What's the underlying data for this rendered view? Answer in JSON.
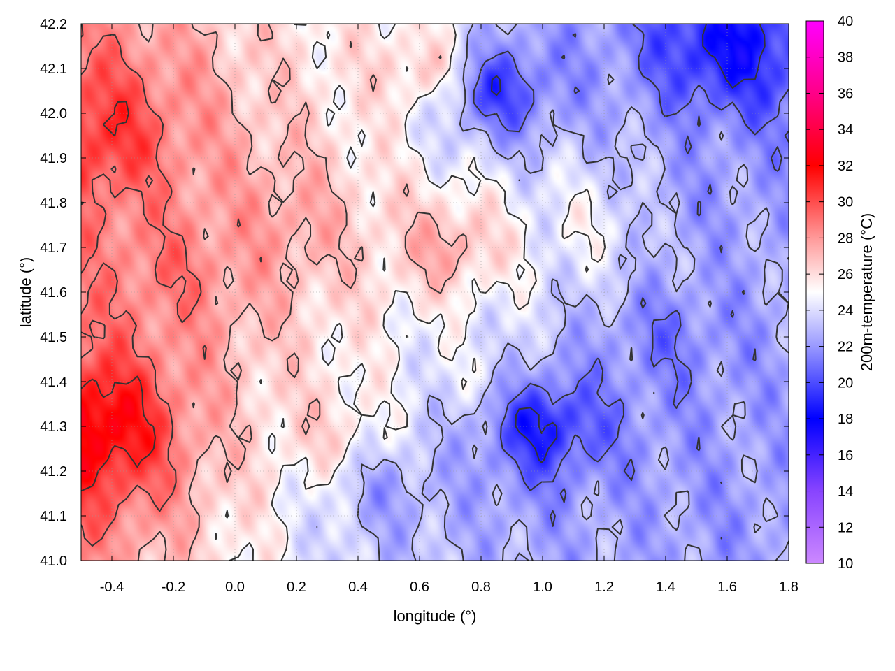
{
  "chart_data": {
    "type": "heatmap",
    "xlabel": "longitude (°)",
    "ylabel": "latitude (°)",
    "colorbar_label": "200m-temperature (°C)",
    "xlim": [
      -0.5,
      1.8
    ],
    "ylim": [
      41.0,
      42.2
    ],
    "x_ticks": [
      -0.4,
      -0.2,
      0.0,
      0.2,
      0.4,
      0.6,
      0.8,
      1.0,
      1.2,
      1.4,
      1.6,
      1.8
    ],
    "x_tick_labels": [
      "-0.4",
      "-0.2",
      "0.0",
      "0.2",
      "0.4",
      "0.6",
      "0.8",
      "1.0",
      "1.2",
      "1.4",
      "1.6",
      "1.8"
    ],
    "y_ticks": [
      41.0,
      41.1,
      41.2,
      41.3,
      41.4,
      41.5,
      41.6,
      41.7,
      41.8,
      41.9,
      42.0,
      42.1,
      42.2
    ],
    "y_tick_labels": [
      "41.0",
      "41.1",
      "41.2",
      "41.3",
      "41.4",
      "41.5",
      "41.6",
      "41.7",
      "41.8",
      "41.9",
      "42.0",
      "42.1",
      "42.2"
    ],
    "colorbar_range": [
      10,
      40
    ],
    "colorbar_ticks": [
      10,
      12,
      14,
      16,
      18,
      20,
      22,
      24,
      26,
      28,
      30,
      32,
      34,
      36,
      38,
      40
    ],
    "colorbar_tick_labels": [
      "10",
      "12",
      "14",
      "16",
      "18",
      "20",
      "22",
      "24",
      "26",
      "28",
      "30",
      "32",
      "34",
      "36",
      "38",
      "40"
    ],
    "colormap": [
      {
        "value": 10,
        "color": "#cc88ff"
      },
      {
        "value": 14,
        "color": "#8844ff"
      },
      {
        "value": 18,
        "color": "#0000ff"
      },
      {
        "value": 22,
        "color": "#9999ff"
      },
      {
        "value": 25,
        "color": "#ffffff"
      },
      {
        "value": 28,
        "color": "#ff9999"
      },
      {
        "value": 32,
        "color": "#ff0000"
      },
      {
        "value": 36,
        "color": "#ff0088"
      },
      {
        "value": 40,
        "color": "#ff00ff"
      }
    ],
    "grid": true,
    "grid_style": "dotted",
    "contour_color": "#333333",
    "temperature_centers": [
      {
        "lon": -0.45,
        "lat": 41.3,
        "temp": 33
      },
      {
        "lon": -0.45,
        "lat": 41.95,
        "temp": 31
      },
      {
        "lon": -0.2,
        "lat": 41.65,
        "temp": 29
      },
      {
        "lon": 0.15,
        "lat": 41.75,
        "temp": 28
      },
      {
        "lon": 0.7,
        "lat": 41.7,
        "temp": 28
      },
      {
        "lon": 0.3,
        "lat": 41.3,
        "temp": 26.5
      },
      {
        "lon": 0.6,
        "lat": 42.1,
        "temp": 27
      },
      {
        "lon": 0.5,
        "lat": 41.15,
        "temp": 22
      },
      {
        "lon": 0.85,
        "lat": 42.05,
        "temp": 19
      },
      {
        "lon": 1.0,
        "lat": 41.3,
        "temp": 18
      },
      {
        "lon": 1.6,
        "lat": 42.15,
        "temp": 18
      },
      {
        "lon": 1.4,
        "lat": 41.5,
        "temp": 21
      },
      {
        "lon": 1.6,
        "lat": 41.1,
        "temp": 22
      },
      {
        "lon": 1.5,
        "lat": 41.8,
        "temp": 22
      },
      {
        "lon": 1.2,
        "lat": 41.05,
        "temp": 22.5
      },
      {
        "lon": 1.15,
        "lat": 41.75,
        "temp": 25
      },
      {
        "lon": 0.75,
        "lat": 41.45,
        "temp": 24.5
      }
    ]
  }
}
